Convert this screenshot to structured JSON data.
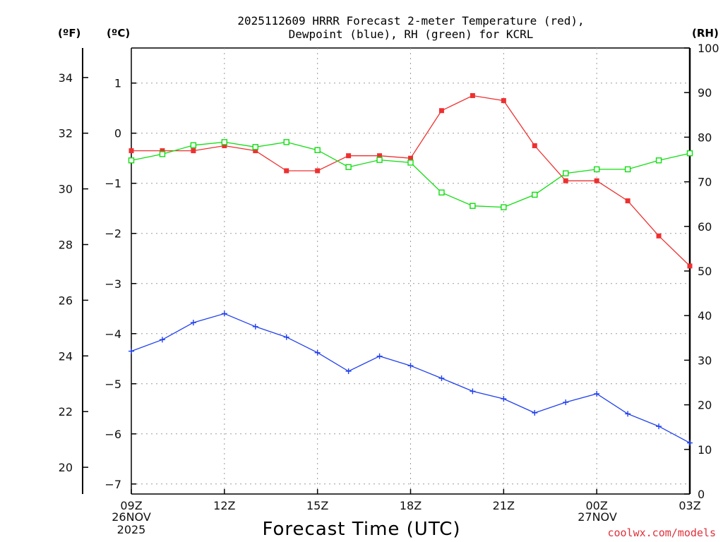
{
  "title_lines": [
    "2025112609 HRRR Forecast 2-meter Temperature (red),",
    "Dewpoint (blue), RH (green) for KCRL"
  ],
  "units": {
    "fahrenheit": "(ºF)",
    "celsius": "(ºC)",
    "rh": "(RH)"
  },
  "x_axis": {
    "title": "Forecast Time (UTC)",
    "labels": [
      "09Z",
      "12Z",
      "15Z",
      "18Z",
      "21Z",
      "00Z",
      "03Z"
    ],
    "start_date": [
      "26NOV",
      "2025"
    ],
    "mid_date": [
      "27NOV"
    ]
  },
  "credit": "coolwx.com/models",
  "chart_data": {
    "type": "line",
    "title": "2025112609 HRRR Forecast 2-meter Temperature (red), Dewpoint (blue), RH (green) for KCRL",
    "xlabel": "Forecast Time (UTC)",
    "x": [
      "09Z",
      "10Z",
      "11Z",
      "12Z",
      "13Z",
      "14Z",
      "15Z",
      "16Z",
      "17Z",
      "18Z",
      "19Z",
      "20Z",
      "21Z",
      "22Z",
      "23Z",
      "00Z",
      "01Z",
      "02Z",
      "03Z"
    ],
    "celsius_axis": {
      "label": "(ºC)",
      "ylim": [
        -7.2,
        1.7
      ],
      "ticks": [
        -7,
        -6,
        -5,
        -4,
        -3,
        -2,
        -1,
        0,
        1
      ]
    },
    "fahrenheit_axis": {
      "label": "(ºF)",
      "ylim": [
        19.04,
        35.06
      ],
      "ticks": [
        20,
        22,
        24,
        26,
        28,
        30,
        32,
        34
      ]
    },
    "rh_axis": {
      "label": "(RH)",
      "ylim": [
        0,
        100
      ],
      "ticks": [
        0,
        10,
        20,
        30,
        40,
        50,
        60,
        70,
        80,
        90,
        100
      ]
    },
    "series": [
      {
        "name": "2-meter Temperature",
        "color": "#ee3030",
        "marker": "filled-square",
        "axis": "celsius",
        "values": [
          -0.35,
          -0.35,
          -0.35,
          -0.25,
          -0.35,
          -0.75,
          -0.75,
          -0.45,
          -0.45,
          -0.5,
          0.45,
          0.75,
          0.65,
          -0.25,
          -0.95,
          -0.95,
          -1.35,
          -2.05,
          -2.65
        ]
      },
      {
        "name": "Dewpoint",
        "color": "#2040ee",
        "marker": "plus",
        "axis": "celsius",
        "values": [
          -4.35,
          -4.12,
          -3.78,
          -3.6,
          -3.86,
          -4.07,
          -4.38,
          -4.75,
          -4.45,
          -4.64,
          -4.89,
          -5.15,
          -5.3,
          -5.58,
          -5.37,
          -5.2,
          -5.6,
          -5.85,
          -6.18
        ]
      },
      {
        "name": "RH",
        "color": "#10dd10",
        "marker": "open-square",
        "axis": "rh",
        "values": [
          74.8,
          76.2,
          78.2,
          78.9,
          77.8,
          78.9,
          77.1,
          73.3,
          74.9,
          74.3,
          67.6,
          64.6,
          64.3,
          67.1,
          71.9,
          72.8,
          72.8,
          74.8,
          76.4
        ]
      }
    ]
  }
}
